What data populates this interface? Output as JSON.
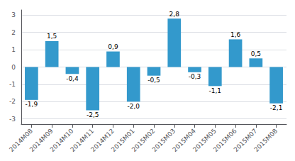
{
  "chart_data": {
    "type": "bar",
    "categories": [
      "2014M08",
      "2014M09",
      "2014M10",
      "2014M11",
      "2014M12",
      "2015M01",
      "2015M02",
      "2015M03",
      "2015M04",
      "2015M05",
      "2015M06",
      "2015M07",
      "2015M08"
    ],
    "values": [
      -1.9,
      1.5,
      -0.4,
      -2.5,
      0.9,
      -2.0,
      -0.5,
      2.8,
      -0.3,
      -1.1,
      1.6,
      0.5,
      -2.1
    ],
    "value_labels": [
      "-1,9",
      "1,5",
      "-0,4",
      "-2,5",
      "0,9",
      "-2,0",
      "-0,5",
      "2,8",
      "-0,3",
      "-1,1",
      "1,6",
      "0,5",
      "-2,1"
    ],
    "data_labels": true,
    "color": "#3399cc",
    "ylim": [
      -3.3,
      3.3
    ],
    "yticks": [
      -3,
      -2,
      -1,
      0,
      1,
      2,
      3
    ],
    "grid": true
  }
}
